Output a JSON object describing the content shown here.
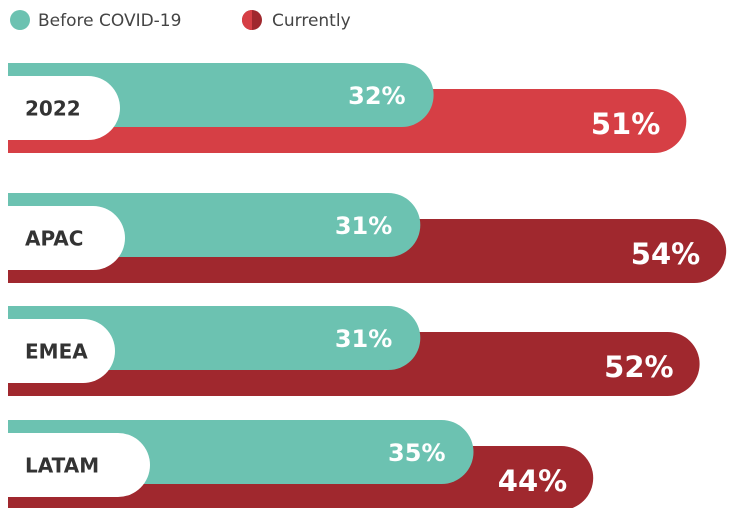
{
  "chart_data": {
    "type": "hbar-overlap",
    "categories": [
      "2022",
      "APAC",
      "EMEA",
      "LATAM"
    ],
    "series": [
      {
        "name": "Before COVID-19",
        "color": "#6cc2b1",
        "values": [
          32,
          31,
          31,
          35
        ],
        "value_labels": [
          "32%",
          "31%",
          "31%",
          "35%"
        ]
      },
      {
        "name": "Currently",
        "colors": [
          "#d63f45",
          "#a0282e",
          "#a0282e",
          "#a0282e"
        ],
        "values": [
          51,
          54,
          52,
          44
        ],
        "value_labels": [
          "51%",
          "54%",
          "52%",
          "44%"
        ]
      }
    ]
  }
}
